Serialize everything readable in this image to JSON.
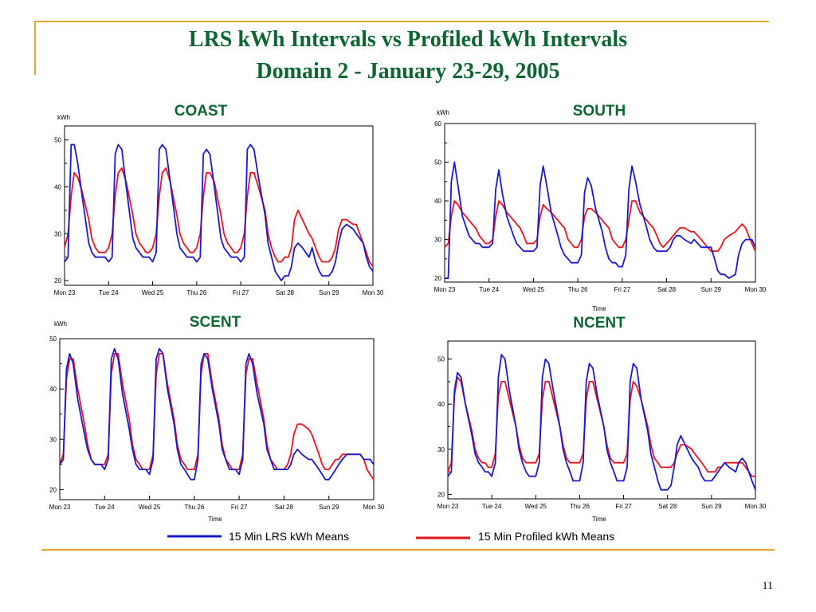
{
  "slide": {
    "title_line1": "LRS kWh Intervals vs Profiled kWh Intervals",
    "title_line2": "Domain 2 - January 23-29, 2005",
    "page_number": "11",
    "accent_color": "#e3a92e",
    "title_color": "#0c6630"
  },
  "legend": {
    "lrs_label": "15 Min LRS kWh Means",
    "lrs_color": "#1a1acc",
    "profiled_label": "15 Min Profiled kWh Means",
    "profiled_color": "#e8141c"
  },
  "chart_data": [
    {
      "type": "line",
      "title": "COAST",
      "ylabel": "kWh",
      "xlabel": "",
      "ylim": [
        19,
        53
      ],
      "yticks": [
        20,
        30,
        40,
        50
      ],
      "xticks": [
        "Mon 23",
        "Tue 24",
        "Wed 25",
        "Thu 26",
        "Fri 27",
        "Sat 28",
        "Sun 29",
        "Mon 30"
      ],
      "x": [
        0,
        0.08,
        0.15,
        0.22,
        0.3,
        0.4,
        0.55,
        0.62,
        0.7,
        0.78,
        0.85,
        0.92,
        1
      ],
      "series": [
        {
          "name": "15 Min LRS kWh Means",
          "day_points": [
            [
              24,
              25,
              49,
              49,
              45,
              38,
              28,
              26,
              25,
              25,
              25,
              25,
              24
            ],
            [
              24,
              25,
              47,
              49,
              48,
              40,
              29,
              27,
              26,
              25,
              25,
              25,
              24
            ],
            [
              24,
              26,
              48,
              49,
              48,
              41,
              30,
              27,
              26,
              25,
              25,
              25,
              24
            ],
            [
              24,
              25,
              47,
              48,
              47,
              40,
              29,
              27,
              26,
              25,
              25,
              25,
              24
            ],
            [
              24,
              25,
              48,
              49,
              48,
              42,
              34,
              28,
              25,
              22,
              21,
              20,
              21
            ],
            [
              20,
              21,
              23,
              27,
              28,
              27,
              25,
              27,
              24,
              22,
              21,
              21,
              21
            ],
            [
              21,
              22,
              24,
              28,
              31,
              32,
              31,
              30,
              29,
              28,
              25,
              23,
              22
            ]
          ]
        },
        {
          "name": "15 Min Profiled kWh Means",
          "day_points": [
            [
              27,
              30,
              38,
              43,
              42,
              39,
              33,
              29,
              27,
              26,
              26,
              26,
              27
            ],
            [
              27,
              30,
              38,
              43,
              44,
              41,
              34,
              30,
              28,
              27,
              26,
              26,
              27
            ],
            [
              27,
              30,
              38,
              43,
              44,
              41,
              34,
              30,
              28,
              27,
              26,
              26,
              27
            ],
            [
              27,
              30,
              38,
              43,
              43,
              41,
              34,
              30,
              28,
              27,
              26,
              26,
              27
            ],
            [
              27,
              30,
              38,
              43,
              43,
              40,
              35,
              30,
              27,
              25,
              24,
              24,
              25
            ],
            [
              24,
              25,
              27,
              33,
              35,
              33,
              30,
              29,
              27,
              25,
              24,
              24,
              24
            ],
            [
              24,
              25,
              27,
              31,
              33,
              33,
              32,
              32,
              30,
              28,
              26,
              24,
              23
            ]
          ]
        }
      ]
    },
    {
      "type": "line",
      "title": "SOUTH",
      "ylabel": "kWh",
      "xlabel": "Time",
      "ylim": [
        19,
        60
      ],
      "yticks": [
        20,
        30,
        40,
        50,
        60
      ],
      "xticks": [
        "Mon 23",
        "Tue 24",
        "Wed 25",
        "Thu 26",
        "Fri 27",
        "Sat 28",
        "Sun 29",
        "Mon 30"
      ],
      "x": [
        0,
        0.08,
        0.15,
        0.22,
        0.3,
        0.4,
        0.55,
        0.62,
        0.7,
        0.78,
        0.85,
        0.92,
        1
      ],
      "series": [
        {
          "name": "15 Min LRS kWh Means",
          "day_points": [
            [
              20,
              20,
              45,
              50,
              44,
              36,
              31,
              30,
              29,
              29,
              28,
              28,
              28
            ],
            [
              28,
              29,
              43,
              48,
              42,
              36,
              31,
              29,
              28,
              27,
              27,
              27,
              27
            ],
            [
              27,
              28,
              44,
              49,
              44,
              37,
              31,
              28,
              26,
              25,
              24,
              24,
              24
            ],
            [
              24,
              26,
              42,
              46,
              44,
              38,
              32,
              28,
              25,
              24,
              24,
              23,
              23
            ],
            [
              23,
              26,
              43,
              49,
              45,
              39,
              33,
              30,
              28,
              27,
              27,
              27,
              27
            ],
            [
              27,
              28,
              30,
              31,
              31,
              30,
              29,
              30,
              29,
              28,
              28,
              28,
              28
            ],
            [
              28,
              25,
              22,
              21,
              21,
              20,
              21,
              26,
              29,
              30,
              30,
              30,
              28
            ]
          ]
        },
        {
          "name": "15 Min Profiled kWh Means",
          "day_points": [
            [
              28,
              29,
              36,
              40,
              39,
              37,
              35,
              34,
              33,
              31,
              30,
              29,
              29
            ],
            [
              29,
              30,
              36,
              40,
              39,
              37,
              35,
              34,
              33,
              31,
              29,
              29,
              29
            ],
            [
              29,
              30,
              36,
              39,
              38,
              37,
              35,
              34,
              33,
              30,
              29,
              28,
              28
            ],
            [
              28,
              30,
              36,
              38,
              38,
              37,
              35,
              34,
              33,
              30,
              29,
              28,
              28
            ],
            [
              28,
              30,
              35,
              40,
              40,
              37,
              35,
              34,
              33,
              31,
              29,
              28,
              29
            ],
            [
              29,
              30,
              31,
              32,
              33,
              33,
              32,
              32,
              31,
              30,
              29,
              28,
              27
            ],
            [
              27,
              27,
              27,
              28,
              30,
              31,
              32,
              33,
              34,
              33,
              31,
              29,
              27
            ]
          ]
        }
      ]
    },
    {
      "type": "line",
      "title": "SCENT",
      "ylabel": "kWh",
      "xlabel": "Time",
      "ylim": [
        18,
        50
      ],
      "yticks": [
        20,
        30,
        40,
        50
      ],
      "xticks": [
        "Mon 23",
        "Tue 24",
        "Wed 25",
        "Thu 26",
        "Fri 27",
        "Sat 28",
        "Sun 29",
        "Mon 30"
      ],
      "x": [
        0,
        0.08,
        0.15,
        0.22,
        0.3,
        0.4,
        0.55,
        0.62,
        0.7,
        0.78,
        0.85,
        0.92,
        1
      ],
      "series": [
        {
          "name": "15 Min LRS kWh Means",
          "day_points": [
            [
              25,
              26,
              44,
              47,
              45,
              38,
              31,
              28,
              26,
              25,
              25,
              25,
              24
            ],
            [
              24,
              26,
              46,
              48,
              46,
              39,
              32,
              28,
              25,
              24,
              24,
              24,
              23
            ],
            [
              23,
              26,
              46,
              48,
              47,
              40,
              33,
              28,
              25,
              24,
              23,
              22,
              22
            ],
            [
              22,
              26,
              45,
              47,
              46,
              40,
              33,
              28,
              26,
              24,
              24,
              24,
              23
            ],
            [
              23,
              26,
              45,
              47,
              45,
              39,
              33,
              28,
              26,
              24,
              24,
              24,
              24
            ],
            [
              24,
              24,
              25,
              27,
              28,
              27,
              26,
              26,
              25,
              24,
              23,
              22,
              22
            ],
            [
              22,
              23,
              24,
              25,
              26,
              27,
              27,
              27,
              27,
              26,
              26,
              26,
              25
            ]
          ]
        },
        {
          "name": "15 Min Profiled kWh Means",
          "day_points": [
            [
              25,
              27,
              42,
              46,
              46,
              40,
              33,
              29,
              26,
              25,
              25,
              25,
              25
            ],
            [
              25,
              27,
              43,
              47,
              47,
              41,
              34,
              29,
              26,
              25,
              24,
              24,
              24
            ],
            [
              24,
              27,
              43,
              47,
              47,
              41,
              34,
              29,
              26,
              25,
              24,
              24,
              24
            ],
            [
              24,
              27,
              43,
              47,
              47,
              41,
              34,
              29,
              26,
              25,
              24,
              24,
              24
            ],
            [
              24,
              27,
              43,
              46,
              46,
              41,
              34,
              29,
              26,
              25,
              24,
              24,
              24
            ],
            [
              24,
              25,
              27,
              31,
              33,
              33,
              32,
              31,
              29,
              27,
              25,
              24,
              24
            ],
            [
              24,
              25,
              26,
              26,
              27,
              27,
              27,
              27,
              27,
              26,
              24,
              23,
              22
            ]
          ]
        }
      ]
    },
    {
      "type": "line",
      "title": "NCENT",
      "ylabel": "",
      "xlabel": "Time",
      "ylim": [
        19,
        54
      ],
      "yticks": [
        20,
        30,
        40,
        50
      ],
      "xticks": [
        "Mon 23",
        "Tue 24",
        "Wed 25",
        "Thu 26",
        "Fri 27",
        "Sat 28",
        "Sun 29",
        "Mon 30"
      ],
      "x": [
        0,
        0.08,
        0.15,
        0.22,
        0.3,
        0.4,
        0.55,
        0.62,
        0.7,
        0.78,
        0.85,
        0.92,
        1
      ],
      "series": [
        {
          "name": "15 Min LRS kWh Means",
          "day_points": [
            [
              24,
              25,
              43,
              47,
              46,
              40,
              33,
              29,
              27,
              26,
              25,
              25,
              24
            ],
            [
              24,
              27,
              46,
              51,
              50,
              43,
              35,
              30,
              27,
              25,
              24,
              24,
              24
            ],
            [
              24,
              27,
              46,
              50,
              49,
              43,
              35,
              30,
              27,
              25,
              23,
              23,
              23
            ],
            [
              23,
              27,
              45,
              49,
              48,
              42,
              35,
              30,
              27,
              25,
              23,
              23,
              23
            ],
            [
              23,
              26,
              45,
              49,
              48,
              41,
              34,
              29,
              26,
              23,
              21,
              21,
              21
            ],
            [
              21,
              22,
              26,
              31,
              33,
              31,
              28,
              27,
              26,
              24,
              23,
              23,
              23
            ],
            [
              23,
              24,
              25,
              26,
              27,
              26,
              25,
              27,
              28,
              27,
              25,
              23,
              21
            ]
          ]
        },
        {
          "name": "15 Min Profiled kWh Means",
          "day_points": [
            [
              25,
              27,
              42,
              46,
              45,
              40,
              34,
              30,
              28,
              27,
              27,
              26,
              26
            ],
            [
              26,
              29,
              42,
              45,
              45,
              41,
              35,
              31,
              28,
              27,
              27,
              27,
              27
            ],
            [
              27,
              29,
              41,
              45,
              45,
              41,
              35,
              31,
              28,
              27,
              27,
              27,
              27
            ],
            [
              27,
              29,
              41,
              45,
              45,
              41,
              35,
              31,
              28,
              27,
              27,
              27,
              27
            ],
            [
              27,
              29,
              41,
              45,
              44,
              41,
              35,
              31,
              28,
              27,
              26,
              26,
              26
            ],
            [
              26,
              26,
              27,
              29,
              31,
              31,
              30,
              29,
              28,
              27,
              26,
              25,
              25
            ],
            [
              25,
              25,
              26,
              26,
              27,
              27,
              27,
              27,
              27,
              26,
              25,
              24,
              24
            ]
          ]
        }
      ]
    }
  ]
}
